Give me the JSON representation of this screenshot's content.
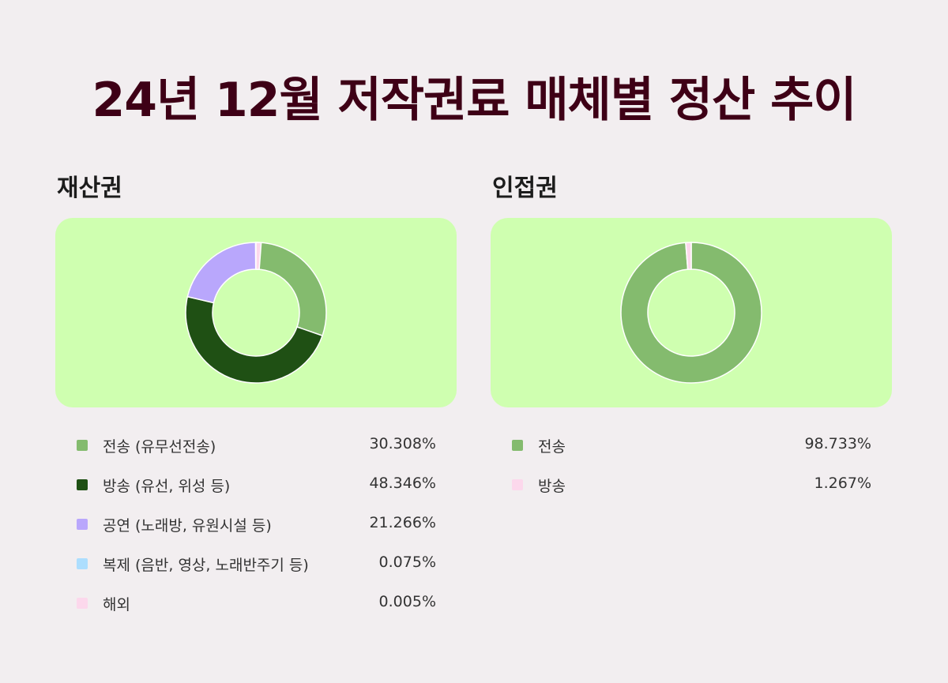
{
  "title": "24년 12월 저작권료 매체별 정산 추이",
  "chart_data": [
    {
      "type": "pie",
      "title": "재산권",
      "donut": true,
      "series": [
        {
          "name": "전송 (유무선전송)",
          "value": 30.308,
          "value_label": "30.308%",
          "color": "#84bb6e"
        },
        {
          "name": "방송 (유선, 위성 등)",
          "value": 48.346,
          "value_label": "48.346%",
          "color": "#1f5014"
        },
        {
          "name": "공연 (노래방, 유원시설 등)",
          "value": 21.266,
          "value_label": "21.266%",
          "color": "#b9a7fc"
        },
        {
          "name": "복제 (음반, 영상, 노래반주기 등)",
          "value": 0.075,
          "value_label": "0.075%",
          "color": "#addefe"
        },
        {
          "name": "해외",
          "value": 0.005,
          "value_label": "0.005%",
          "color": "#fcd8ec"
        }
      ]
    },
    {
      "type": "pie",
      "title": "인접권",
      "donut": true,
      "series": [
        {
          "name": "전송",
          "value": 98.733,
          "value_label": "98.733%",
          "color": "#84bb6e"
        },
        {
          "name": "방송",
          "value": 1.267,
          "value_label": "1.267%",
          "color": "#fcd8ec"
        }
      ]
    }
  ]
}
